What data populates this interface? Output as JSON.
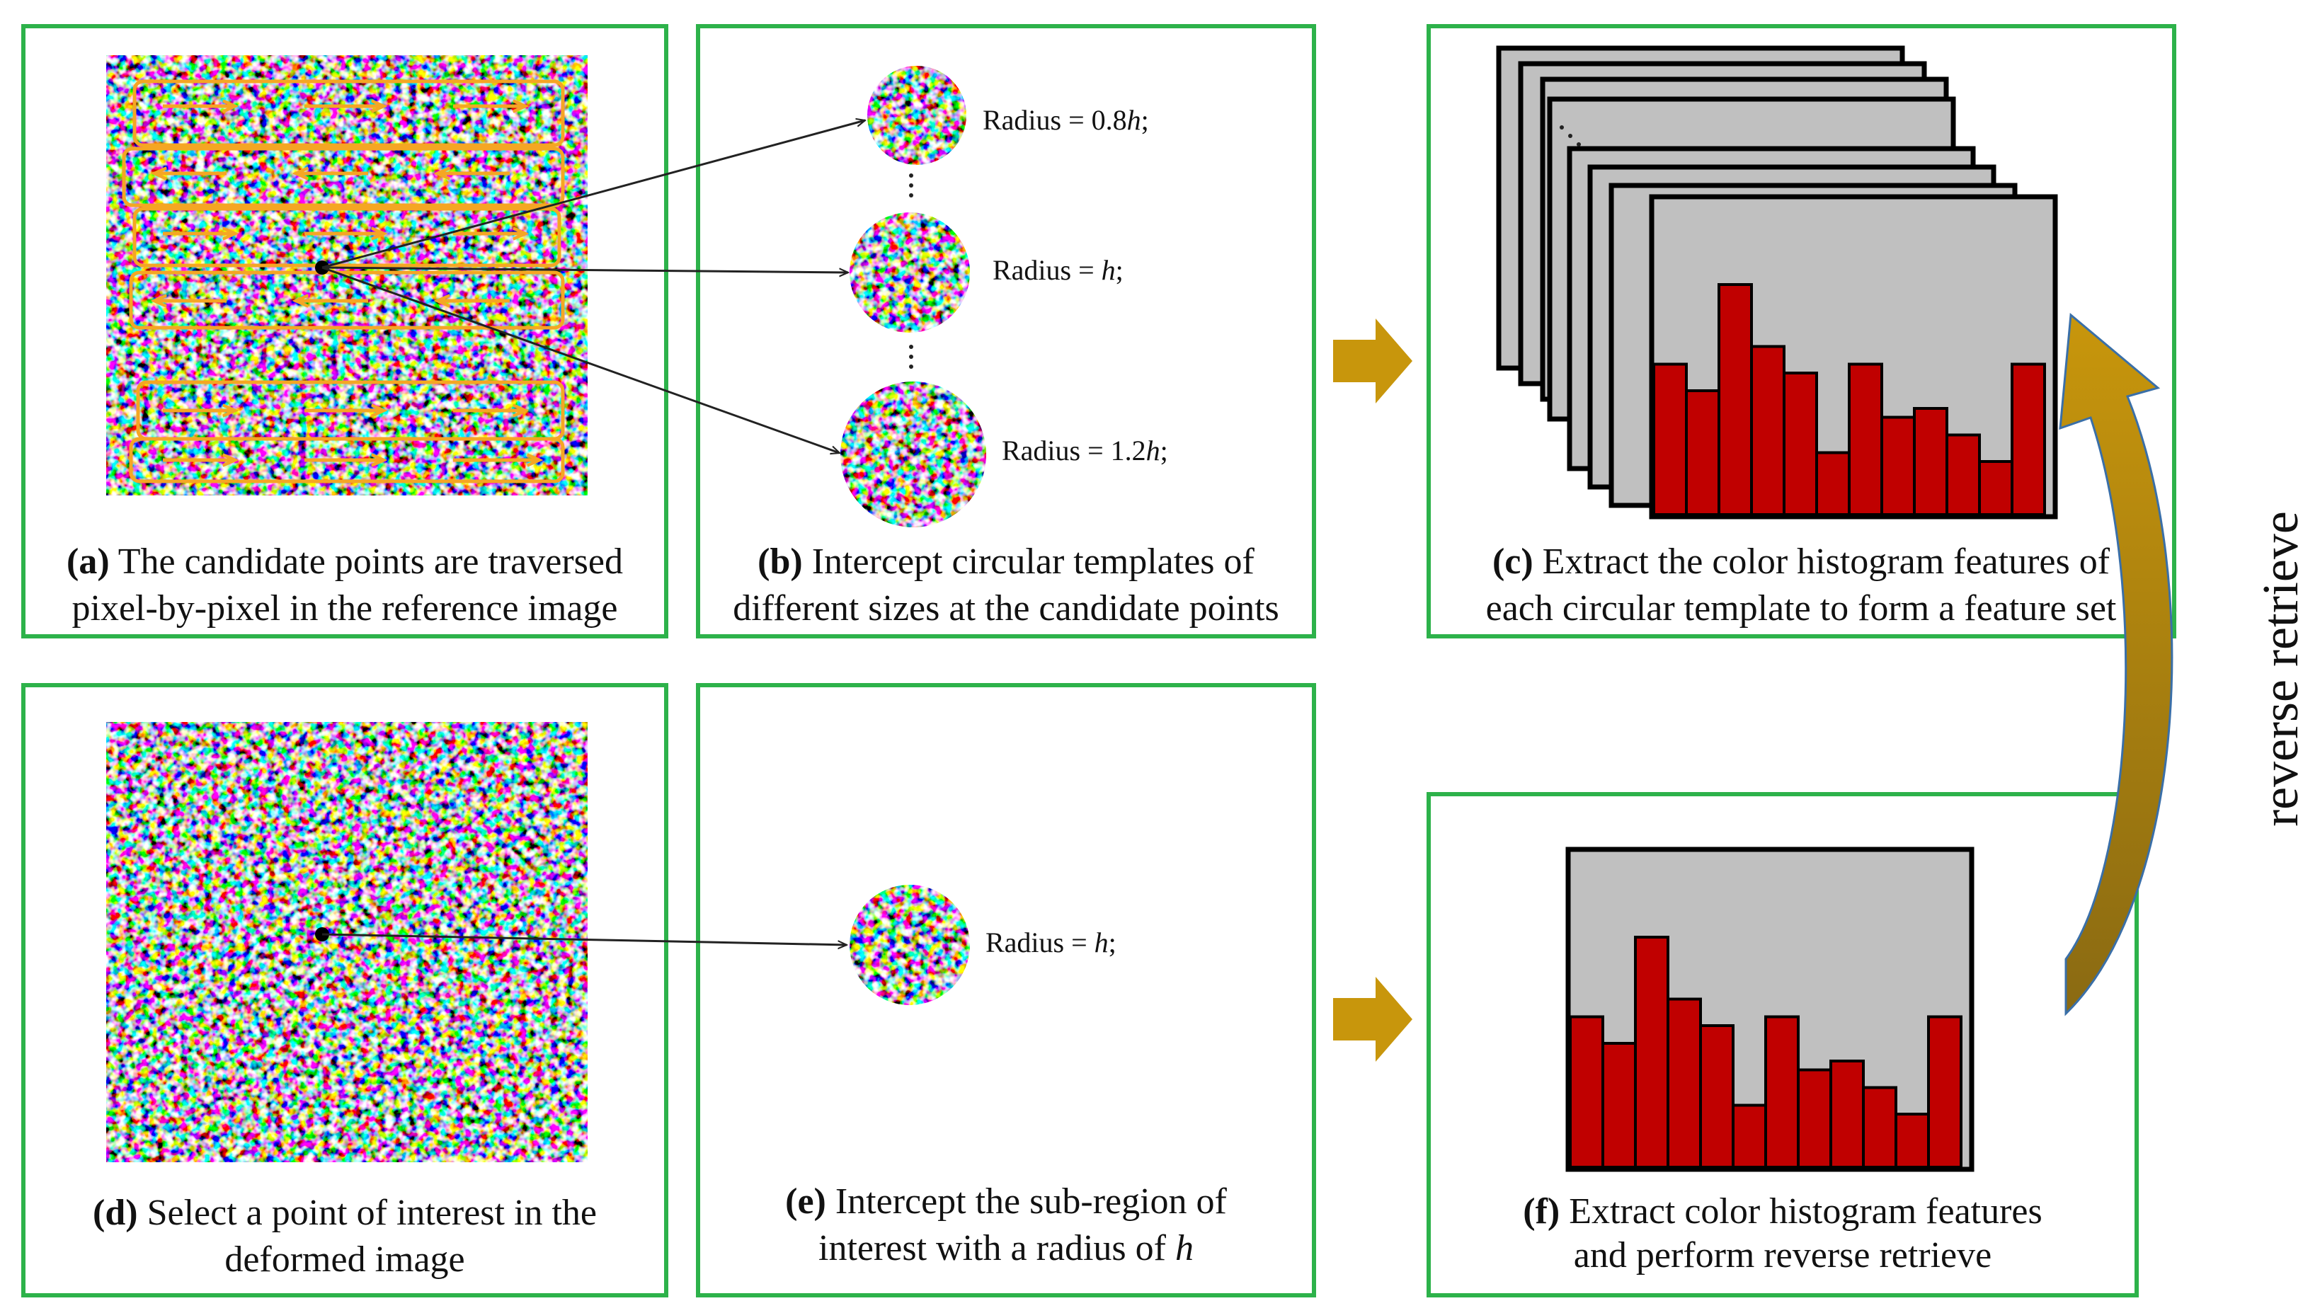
{
  "panels": {
    "a": {
      "tag": "(a)",
      "line1": " The candidate points are traversed",
      "line2": "pixel-by-pixel in the reference image"
    },
    "b": {
      "tag": "(b)",
      "line1": " Intercept circular templates of",
      "line2": "different sizes at the candidate points"
    },
    "c": {
      "tag": "(c)",
      "line1": " Extract the color histogram features of",
      "line2": "each circular template to form a feature set"
    },
    "d": {
      "tag": "(d)",
      "line1": " Select a point of interest in the",
      "line2": "deformed image"
    },
    "e": {
      "tag": "(e)",
      "line1": " Intercept the sub-region of",
      "line2_pre": "interest with a radius of ",
      "line2_var": "h"
    },
    "f": {
      "tag": "(f)",
      "line1": " Extract color histogram features",
      "line2": "and perform reverse retrieve"
    }
  },
  "templates": {
    "small": {
      "pre": "Radius = 0.8",
      "var": "h",
      "post": ";"
    },
    "mid": {
      "pre": "Radius = ",
      "var": "h",
      "post": ";"
    },
    "large": {
      "pre": "Radius = 1.2",
      "var": "h",
      "post": ";"
    },
    "roi": {
      "pre": "Radius = ",
      "var": "h",
      "post": ";"
    }
  },
  "side_label": "reverse retrieve",
  "colors": {
    "panel_border": "#2db24a",
    "arrow_gold": "#c8960c",
    "bar_red": "#c00000",
    "card_gray": "#c0c0c0",
    "traverse_orange": "#f5a623"
  },
  "hist_c": [
    0.85,
    0.7,
    1.3,
    0.95,
    0.8,
    0.35,
    0.85,
    0.55,
    0.6,
    0.45,
    0.3,
    0.85
  ],
  "hist_f": [
    0.85,
    0.7,
    1.3,
    0.95,
    0.8,
    0.35,
    0.85,
    0.55,
    0.6,
    0.45,
    0.3,
    0.85
  ]
}
